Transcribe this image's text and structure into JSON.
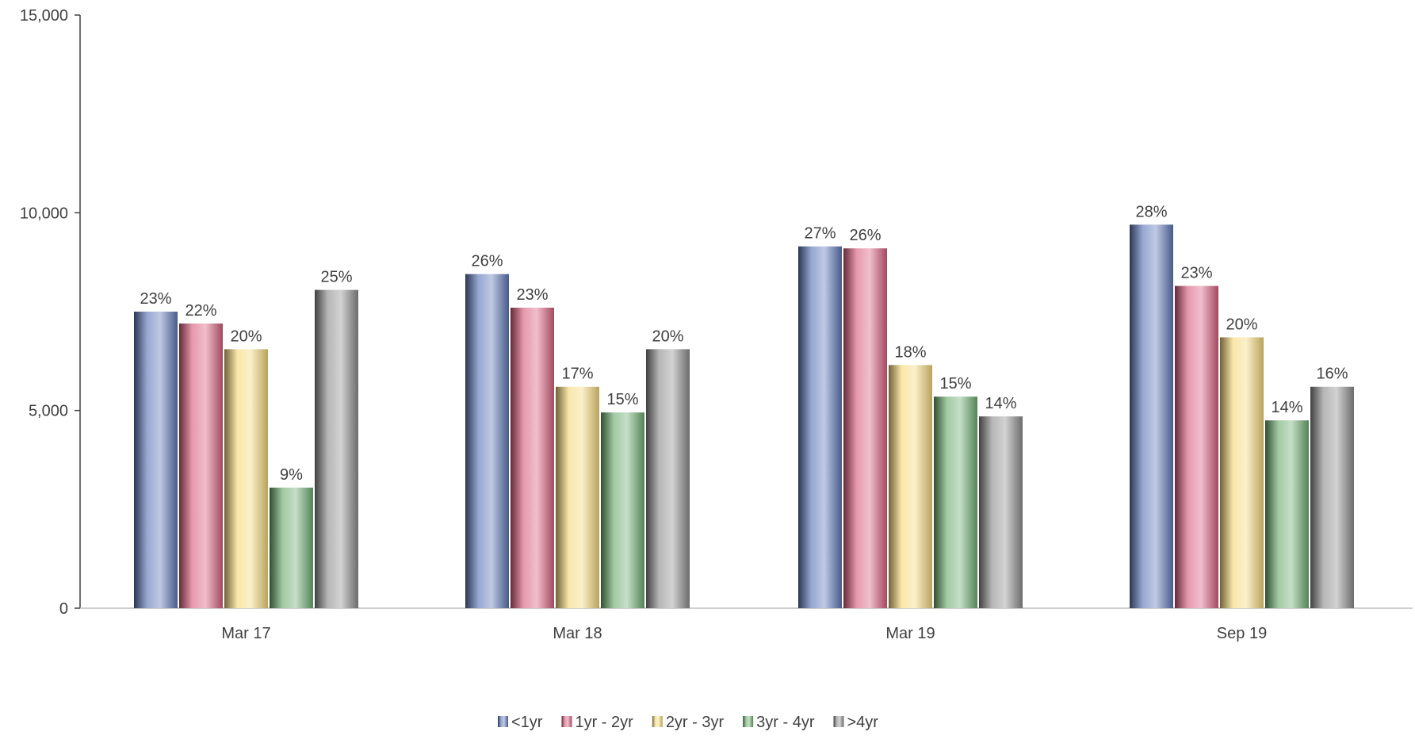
{
  "chart_data": {
    "type": "bar",
    "title": "",
    "xlabel": "",
    "ylabel": "",
    "ylim": [
      0,
      15000
    ],
    "yticks": [
      0,
      5000,
      10000,
      15000
    ],
    "ytick_labels": [
      "0",
      "5,000",
      "10,000",
      "15,000"
    ],
    "grid": false,
    "legend_position": "bottom",
    "categories": [
      "Mar 17",
      "Mar 18",
      "Mar 19",
      "Sep 19"
    ],
    "series": [
      {
        "name": "<1yr",
        "color": "#5f78b8",
        "values": [
          7500,
          8450,
          9150,
          9700
        ],
        "labels": [
          "23%",
          "26%",
          "27%",
          "28%"
        ]
      },
      {
        "name": "1yr - 2yr",
        "color": "#d9607f",
        "values": [
          7200,
          7600,
          9100,
          8150
        ],
        "labels": [
          "22%",
          "23%",
          "26%",
          "23%"
        ]
      },
      {
        "name": "2yr - 3yr",
        "color": "#f5d97a",
        "values": [
          6550,
          5600,
          6150,
          6850
        ],
        "labels": [
          "20%",
          "17%",
          "18%",
          "20%"
        ]
      },
      {
        "name": "3yr - 4yr",
        "color": "#6fae72",
        "values": [
          3050,
          4950,
          5350,
          4750
        ],
        "labels": [
          "9%",
          "15%",
          "15%",
          "14%"
        ]
      },
      {
        "name": ">4yr",
        "color": "#8f8f8f",
        "values": [
          8050,
          6550,
          4850,
          5600
        ],
        "labels": [
          "25%",
          "20%",
          "14%",
          "16%"
        ]
      }
    ]
  }
}
